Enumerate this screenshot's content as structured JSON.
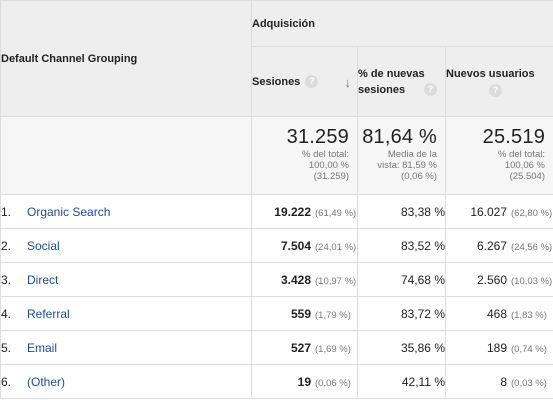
{
  "header": {
    "dimension_label": "Default Channel Grouping",
    "group_label": "Adquisición",
    "columns": [
      {
        "label": "Sesiones",
        "help_icon": "help-icon",
        "sort_icon": "sort-down-arrow-icon"
      },
      {
        "label": "% de nuevas sesiones",
        "help_icon": "help-icon"
      },
      {
        "label": "Nuevos usuarios",
        "help_icon": "help-icon"
      }
    ]
  },
  "totals": [
    {
      "value": "31.259",
      "note": "% del total: 100,00 % (31.259)"
    },
    {
      "value": "81,64 %",
      "note": "Media de la vista: 81,59 % (0,06 %)"
    },
    {
      "value": "25.519",
      "note": "% del total: 100,06 % (25.504)"
    }
  ],
  "rows": [
    {
      "index": "1.",
      "channel": "Organic Search",
      "sessions": "19.222",
      "sessions_pct": "(61,49 %)",
      "new_sessions_pct": "83,38 %",
      "new_users": "16.027",
      "new_users_pct": "(62,80 %)"
    },
    {
      "index": "2.",
      "channel": "Social",
      "sessions": "7.504",
      "sessions_pct": "(24,01 %)",
      "new_sessions_pct": "83,52 %",
      "new_users": "6.267",
      "new_users_pct": "(24,56 %)"
    },
    {
      "index": "3.",
      "channel": "Direct",
      "sessions": "3.428",
      "sessions_pct": "(10,97 %)",
      "new_sessions_pct": "74,68 %",
      "new_users": "2.560",
      "new_users_pct": "(10,03 %)"
    },
    {
      "index": "4.",
      "channel": "Referral",
      "sessions": "559",
      "sessions_pct": "(1,79 %)",
      "new_sessions_pct": "83,72 %",
      "new_users": "468",
      "new_users_pct": "(1,83 %)"
    },
    {
      "index": "5.",
      "channel": "Email",
      "sessions": "527",
      "sessions_pct": "(1,69 %)",
      "new_sessions_pct": "35,86 %",
      "new_users": "189",
      "new_users_pct": "(0,74 %)"
    },
    {
      "index": "6.",
      "channel": "(Other)",
      "sessions": "19",
      "sessions_pct": "(0,06 %)",
      "new_sessions_pct": "42,11 %",
      "new_users": "8",
      "new_users_pct": "(0,03 %)"
    }
  ]
}
